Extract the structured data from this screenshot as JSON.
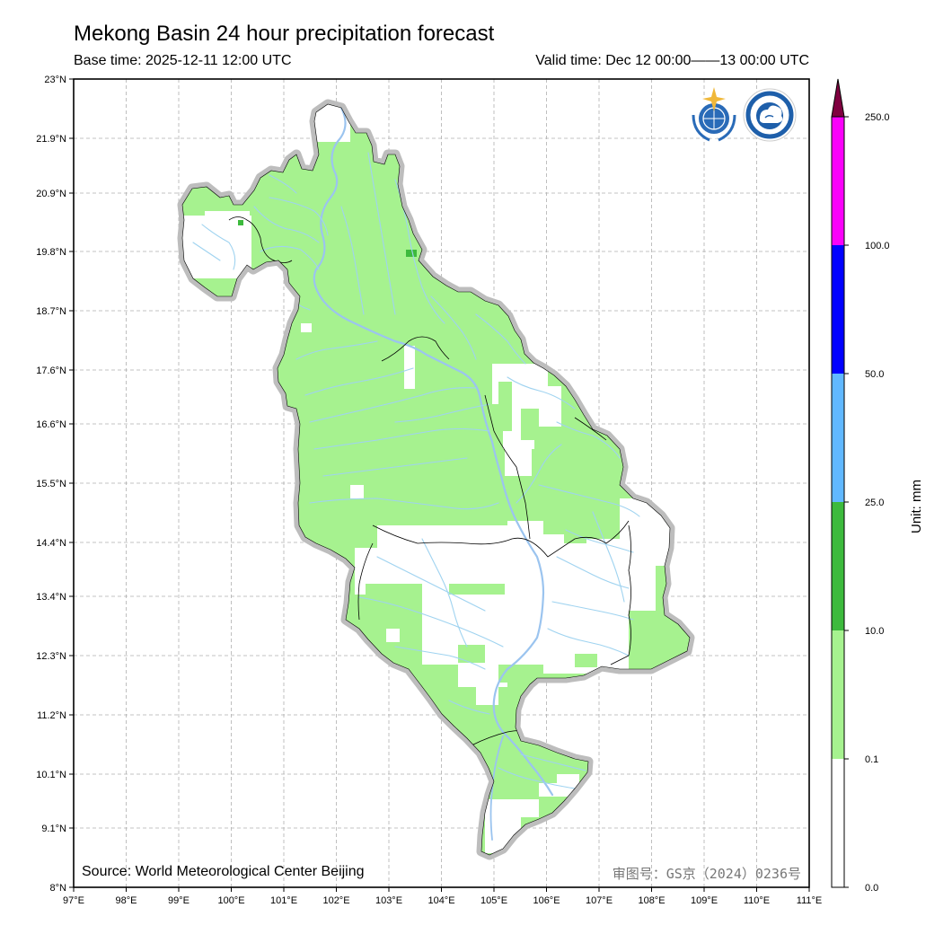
{
  "map": {
    "title": "Mekong Basin 24 hour precipitation forecast",
    "base_time": "Base time: 2025-12-11 12:00 UTC",
    "valid_time": "Valid time: Dec 12 00:00——13 00:00 UTC",
    "source": "Source: World Meteorological Center Beijing",
    "review_number": "审图号：GS京（2024）0236号",
    "region": "Mekong Basin",
    "lat_ticks": [
      "23°N",
      "21.9°N",
      "20.9°N",
      "19.8°N",
      "18.7°N",
      "17.6°N",
      "16.6°N",
      "15.5°N",
      "14.4°N",
      "13.4°N",
      "12.3°N",
      "11.2°N",
      "10.1°N",
      "9.1°N",
      "8°N"
    ],
    "lon_ticks": [
      "97°E",
      "98°E",
      "99°E",
      "100°E",
      "101°E",
      "102°E",
      "103°E",
      "104°E",
      "105°E",
      "106°E",
      "107°E",
      "108°E",
      "109°E",
      "110°E",
      "111°E"
    ],
    "logos": [
      "wmo-logo",
      "cma-logo"
    ],
    "colors": {
      "frame": "#000000",
      "grid": "#b0b0b0",
      "river": "#9fd3f0",
      "main_river": "#a9c8f0",
      "basin_halo": "#bdbdbd",
      "border": "#000000"
    }
  },
  "legend": {
    "unit_label": "Unit: mm",
    "levels": [
      "0.0",
      "0.1",
      "10.0",
      "25.0",
      "50.0",
      "100.0",
      "250.0"
    ],
    "colors": [
      "#ffffff",
      "#a6f28f",
      "#3dba3d",
      "#61b8ff",
      "#0000ff",
      "#fa00fa",
      "#800040"
    ]
  }
}
